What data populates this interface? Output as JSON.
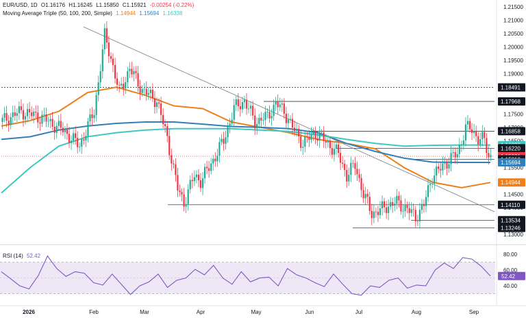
{
  "header": {
    "symbol": "EUR/USD, 1D",
    "open": "O1.16176",
    "high": "H1.16245",
    "low": "L1.15850",
    "close": "C1.15921",
    "change": "-0.00254 (-0.22%)"
  },
  "ma_legend": {
    "name": "Moving Average Triple (50, 100, 200, Simple)",
    "v50": "1.14944",
    "v100": "1.15694",
    "v200": "1.16338"
  },
  "rsi_legend": {
    "name": "RSI (14)",
    "value": "52.42"
  },
  "colors": {
    "up": "#22ab94",
    "down": "#f23645",
    "ma50": "#ef7f1a",
    "ma100": "#2f80b8",
    "ma200": "#3ec8c0",
    "rsi": "#7e57c2",
    "rsi_band": "#ede7f6"
  },
  "chart_data": [
    {
      "type": "candlestick",
      "title": "EUR/USD, 1D",
      "price_axis": {
        "ticks": [
          "1.21500",
          "1.21000",
          "1.20500",
          "1.20000",
          "1.19500",
          "1.19000",
          "1.18500",
          "1.17500",
          "1.17000",
          "1.16500",
          "1.16000",
          "1.15500",
          "1.15000",
          "1.14500",
          "1.14000",
          "1.13500",
          "1.13000"
        ],
        "range": [
          1.128,
          1.216
        ]
      },
      "time_axis": {
        "labels": [
          "2026",
          "Feb",
          "Mar",
          "Apr",
          "May",
          "Jun",
          "Jul",
          "Aug",
          "Sep"
        ]
      },
      "price_tags": [
        {
          "text": "1.18492",
          "value": 1.18492,
          "color": "#131722"
        },
        {
          "text": "1.18491",
          "value": 1.18491,
          "color": "#131722"
        },
        {
          "text": "1.17968",
          "value": 1.17968,
          "color": "#131722"
        },
        {
          "text": "1.16858",
          "value": 1.16858,
          "color": "#131722"
        },
        {
          "text": "1.16338",
          "value": 1.16338,
          "color": "#3ec8c0"
        },
        {
          "text": "1.16220",
          "value": 1.1622,
          "color": "#131722"
        },
        {
          "text": "1.15921",
          "value": 1.15921,
          "color": "#f23645"
        },
        {
          "text": "1.15810",
          "value": 1.1581,
          "color": "#131722"
        },
        {
          "text": "1.15694",
          "value": 1.15694,
          "color": "#2f80b8"
        },
        {
          "text": "1.14944",
          "value": 1.14944,
          "color": "#ef7f1a"
        },
        {
          "text": "1.14110",
          "value": 1.1411,
          "color": "#131722"
        },
        {
          "text": "1.13534",
          "value": 1.13534,
          "color": "#131722"
        },
        {
          "text": "1.13246",
          "value": 1.13246,
          "color": "#131722"
        }
      ],
      "series": [
        {
          "name": "SMA 50",
          "values": [
            1.1705,
            1.1725,
            1.176,
            1.183,
            1.185,
            1.182,
            1.178,
            1.177,
            1.172,
            1.17,
            1.168,
            1.1655,
            1.164,
            1.162,
            1.155,
            1.1495,
            1.1475,
            1.1494
          ]
        },
        {
          "name": "SMA 100",
          "values": [
            1.1655,
            1.1665,
            1.169,
            1.1705,
            1.1715,
            1.172,
            1.172,
            1.1712,
            1.1703,
            1.17,
            1.1695,
            1.168,
            1.164,
            1.161,
            1.1585,
            1.157,
            1.1569,
            1.1569
          ]
        },
        {
          "name": "SMA 200",
          "values": [
            1.1455,
            1.155,
            1.163,
            1.1665,
            1.168,
            1.169,
            1.1695,
            1.1695,
            1.1695,
            1.169,
            1.1685,
            1.1672,
            1.1655,
            1.164,
            1.163,
            1.1633,
            1.1634,
            1.1634
          ]
        }
      ]
    },
    {
      "type": "line",
      "title": "RSI (14)",
      "y_axis": {
        "ticks": [
          "80.00",
          "60.00",
          "40.00"
        ],
        "range": [
          20,
          88
        ]
      },
      "band": [
        30,
        70
      ],
      "last_value": 52.42,
      "values": [
        58,
        49,
        40,
        36,
        53,
        78,
        62,
        52,
        58,
        56,
        44,
        41,
        55,
        42,
        29,
        40,
        45,
        55,
        38,
        47,
        50,
        61,
        54,
        66,
        50,
        42,
        58,
        45,
        50,
        51,
        40,
        62,
        54,
        50,
        44,
        39,
        55,
        42,
        30,
        28,
        40,
        38,
        47,
        50,
        37,
        41,
        40,
        60,
        69,
        62,
        76,
        74,
        65,
        52.42
      ]
    }
  ]
}
